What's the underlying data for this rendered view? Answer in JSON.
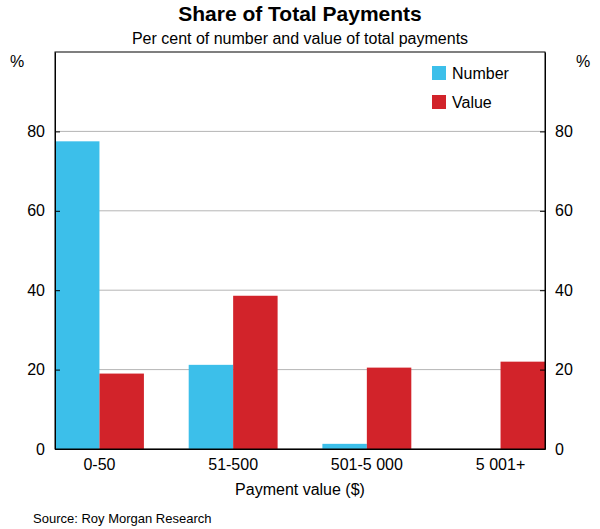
{
  "chart_data": {
    "type": "bar",
    "title": "Share of Total Payments",
    "subtitle": "Per cent of number and value of total payments",
    "x_label": "Payment value ($)",
    "y_label": "%",
    "source": "Source: Roy Morgan Research",
    "categories": [
      "0-50",
      "51-500",
      "501-5 000",
      "5 001+"
    ],
    "series": [
      {
        "name": "Number",
        "color": "#3cbfea",
        "values": [
          77.5,
          21.2,
          1.3,
          0
        ]
      },
      {
        "name": "Value",
        "color": "#d2232a",
        "values": [
          19,
          38.6,
          20.5,
          22
        ]
      }
    ],
    "ylim": [
      0,
      100
    ],
    "yticks": [
      0,
      20,
      40,
      60,
      80
    ],
    "grid": true,
    "legend": "top-right"
  }
}
